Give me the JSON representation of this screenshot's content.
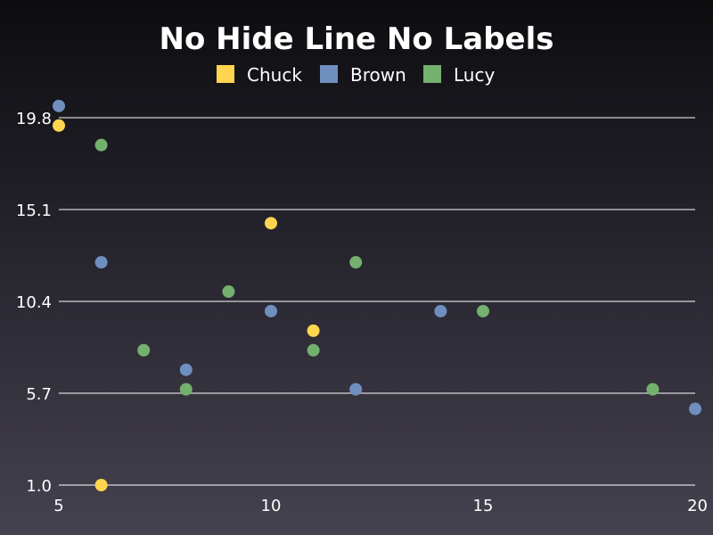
{
  "chart_data": {
    "type": "scatter",
    "title": "No Hide Line No Labels",
    "xlabel": "",
    "ylabel": "",
    "xlim": [
      5,
      20
    ],
    "ylim": [
      1.0,
      20.5
    ],
    "x_ticks": [
      "5",
      "10",
      "15",
      "20"
    ],
    "y_ticks": [
      "1.0",
      "5.7",
      "10.4",
      "15.1",
      "19.8"
    ],
    "grid": "horizontal",
    "legend_position": "top",
    "series": [
      {
        "name": "Chuck",
        "color": "#ffd54f",
        "points": [
          [
            5,
            19.4
          ],
          [
            6,
            1.0
          ],
          [
            10,
            14.4
          ],
          [
            11,
            8.9
          ]
        ]
      },
      {
        "name": "Brown",
        "color": "#6f8fbf",
        "points": [
          [
            5,
            20.4
          ],
          [
            6,
            12.4
          ],
          [
            8,
            6.9
          ],
          [
            10,
            9.9
          ],
          [
            12,
            5.9
          ],
          [
            14,
            9.9
          ],
          [
            20,
            4.9
          ]
        ]
      },
      {
        "name": "Lucy",
        "color": "#74b06e",
        "points": [
          [
            6,
            18.4
          ],
          [
            7,
            7.9
          ],
          [
            8,
            5.9
          ],
          [
            9,
            10.9
          ],
          [
            11,
            7.9
          ],
          [
            12,
            12.4
          ],
          [
            15,
            9.9
          ],
          [
            19,
            5.9
          ]
        ]
      }
    ]
  }
}
